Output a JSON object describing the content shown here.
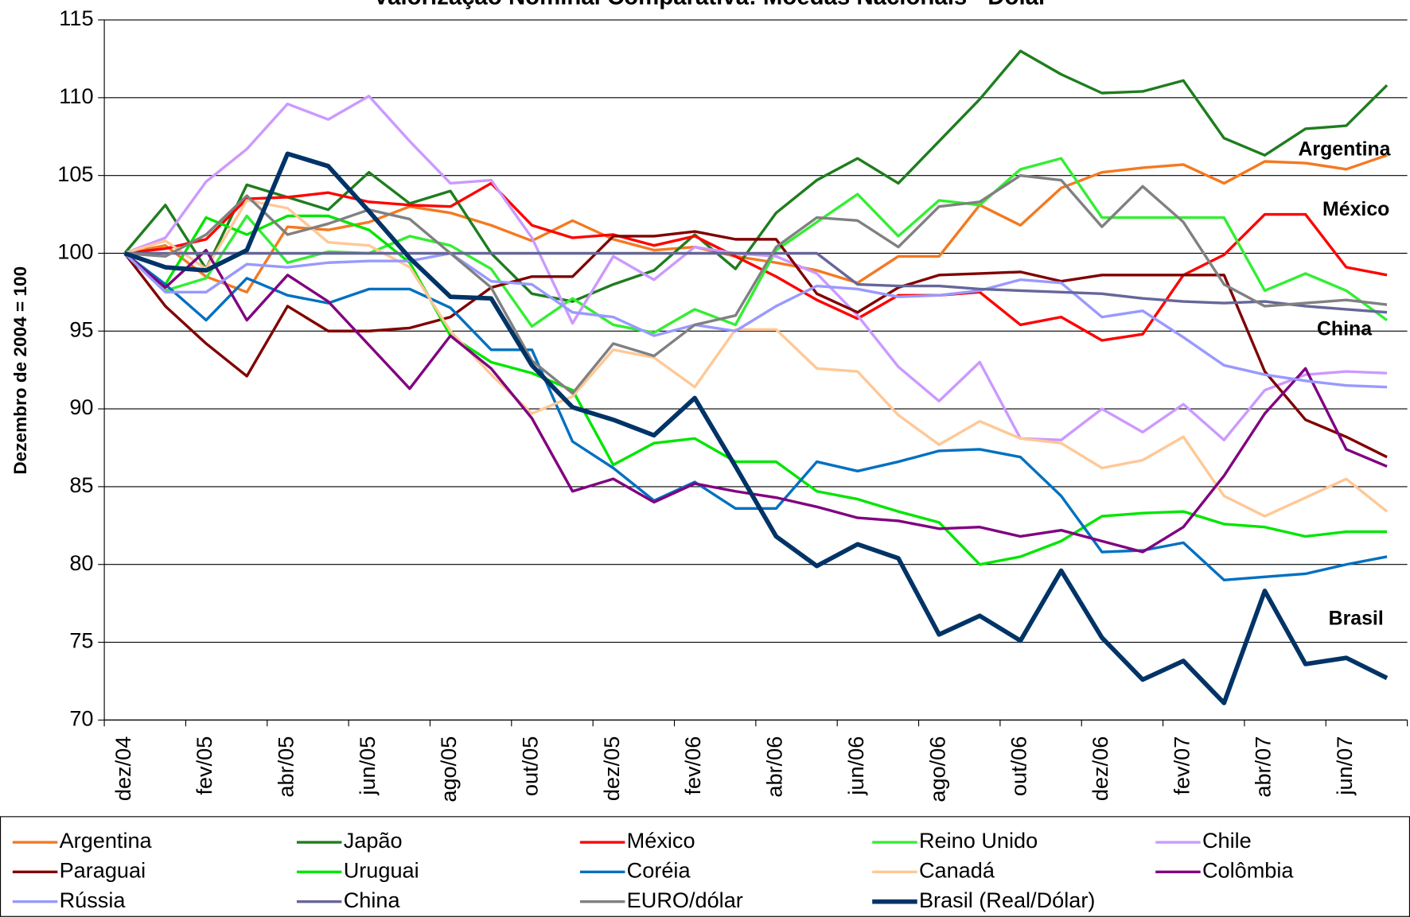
{
  "chart_data": {
    "type": "line",
    "title": "Valorização Nominal Comparativa: Moedas Nacionais - Dólar",
    "y_label": "Dezembro de 2004 = 100",
    "categories": [
      "dez/04",
      null,
      "fev/05",
      null,
      "abr/05",
      null,
      "jun/05",
      null,
      "ago/05",
      null,
      "out/05",
      null,
      "dez/05",
      null,
      "fev/06",
      null,
      "abr/06",
      null,
      "jun/06",
      null,
      "ago/06",
      null,
      "out/06",
      null,
      "dez/06",
      null,
      "fev/07",
      null,
      "abr/07",
      null,
      "jun/07",
      null
    ],
    "ylim": [
      70,
      115
    ],
    "yticks": [
      70,
      75,
      80,
      85,
      90,
      95,
      100,
      105,
      110,
      115
    ],
    "grid": true,
    "annotations": [
      "Argentina",
      "México",
      "China",
      "Brasil"
    ],
    "series": [
      {
        "name": "Argentina",
        "color": "#f47920",
        "width": 3,
        "values": [
          100,
          100.5,
          98.5,
          97.5,
          101.7,
          101.5,
          102.0,
          103.0,
          102.6,
          101.8,
          100.8,
          102.1,
          100.9,
          100.2,
          100.4,
          99.8,
          99.4,
          98.9,
          98.1,
          99.8,
          99.8,
          103.1,
          101.8,
          104.2,
          105.2,
          105.5,
          105.7,
          104.5,
          105.9,
          105.8,
          105.4,
          106.3
        ]
      },
      {
        "name": "Japão",
        "color": "#1e7d1e",
        "width": 3,
        "values": [
          100,
          103.1,
          99.0,
          104.4,
          103.6,
          102.8,
          105.2,
          103.2,
          104.0,
          100.0,
          97.4,
          96.9,
          98.0,
          98.9,
          101.2,
          99.0,
          102.6,
          104.7,
          106.1,
          104.5,
          107.2,
          109.9,
          113.0,
          111.5,
          110.3,
          110.4,
          111.1,
          107.4,
          106.3,
          108.0,
          108.2,
          110.8
        ]
      },
      {
        "name": "México",
        "color": "#ff0000",
        "width": 3,
        "values": [
          100,
          100.3,
          100.9,
          103.5,
          103.6,
          103.9,
          103.3,
          103.1,
          103.0,
          104.5,
          101.8,
          101.0,
          101.2,
          100.5,
          101.1,
          99.8,
          98.5,
          97.0,
          95.8,
          97.3,
          97.3,
          97.5,
          95.4,
          95.9,
          94.4,
          94.8,
          98.6,
          99.9,
          102.5,
          102.5,
          99.1,
          98.6
        ]
      },
      {
        "name": "Reino Unido",
        "color": "#33ee33",
        "width": 3,
        "values": [
          100,
          97.6,
          98.4,
          102.4,
          99.4,
          100.1,
          100.0,
          101.1,
          100.5,
          99.0,
          95.3,
          97.1,
          95.4,
          94.9,
          96.4,
          95.4,
          100.2,
          102.0,
          103.8,
          101.1,
          103.4,
          103.1,
          105.4,
          106.1,
          102.3,
          102.3,
          102.3,
          102.3,
          97.6,
          98.7,
          97.6,
          95.7
        ]
      },
      {
        "name": "Chile",
        "color": "#cc99ff",
        "width": 3,
        "values": [
          100,
          101.0,
          104.6,
          106.7,
          109.6,
          108.6,
          110.1,
          107.2,
          104.5,
          104.7,
          101.0,
          95.5,
          99.8,
          98.3,
          100.4,
          100.0,
          99.8,
          98.7,
          96.0,
          92.7,
          90.5,
          93.0,
          88.1,
          88.0,
          90.0,
          88.5,
          90.3,
          88.0,
          91.2,
          92.2,
          92.4,
          92.3
        ]
      },
      {
        "name": "Paraguai",
        "color": "#800000",
        "width": 3,
        "values": [
          100,
          96.6,
          94.2,
          92.1,
          96.6,
          95.0,
          95.0,
          95.2,
          95.9,
          97.8,
          98.5,
          98.5,
          101.1,
          101.1,
          101.4,
          100.9,
          100.9,
          97.4,
          96.2,
          97.8,
          98.6,
          98.7,
          98.8,
          98.2,
          98.6,
          98.6,
          98.6,
          98.6,
          92.4,
          89.3,
          88.2,
          86.9
        ]
      },
      {
        "name": "Uruguai",
        "color": "#00e600",
        "width": 3,
        "values": [
          100,
          98.0,
          102.3,
          101.2,
          102.4,
          102.4,
          101.5,
          99.4,
          94.7,
          93.0,
          92.3,
          91.2,
          86.4,
          87.8,
          88.1,
          86.6,
          86.6,
          84.7,
          84.2,
          83.4,
          82.7,
          80.0,
          80.5,
          81.5,
          83.1,
          83.3,
          83.4,
          82.6,
          82.4,
          81.8,
          82.1,
          82.1
        ]
      },
      {
        "name": "Coréia",
        "color": "#0070c0",
        "width": 3,
        "values": [
          100,
          98.0,
          95.7,
          98.4,
          97.3,
          96.8,
          97.7,
          97.7,
          96.5,
          93.8,
          93.8,
          87.9,
          86.2,
          84.1,
          85.3,
          83.6,
          83.6,
          86.6,
          86.0,
          86.6,
          87.3,
          87.4,
          86.9,
          84.4,
          80.8,
          80.9,
          81.4,
          79.0,
          79.2,
          79.4,
          80.0,
          80.5
        ]
      },
      {
        "name": "Canadá",
        "color": "#ffc896",
        "width": 3,
        "values": [
          100,
          100.8,
          99.0,
          103.4,
          102.9,
          100.7,
          100.5,
          99.1,
          95.0,
          92.2,
          89.7,
          90.8,
          93.8,
          93.3,
          91.4,
          95.1,
          95.1,
          92.6,
          92.4,
          89.6,
          87.7,
          89.2,
          88.1,
          87.8,
          86.2,
          86.7,
          88.2,
          84.4,
          83.1,
          84.3,
          85.5,
          83.4
        ]
      },
      {
        "name": "Colômbia",
        "color": "#800080",
        "width": 3,
        "values": [
          100,
          97.8,
          100.2,
          95.7,
          98.6,
          96.9,
          94.1,
          91.3,
          94.7,
          92.6,
          89.4,
          84.7,
          85.5,
          84.0,
          85.2,
          84.7,
          84.3,
          83.7,
          83.0,
          82.8,
          82.3,
          82.4,
          81.8,
          82.2,
          81.5,
          80.8,
          82.4,
          85.7,
          89.7,
          92.6,
          87.4,
          86.3
        ]
      },
      {
        "name": "Rússia",
        "color": "#9999ff",
        "width": 3,
        "values": [
          100,
          97.5,
          97.5,
          99.3,
          99.1,
          99.4,
          99.5,
          99.5,
          100.0,
          98.2,
          98.0,
          96.2,
          95.9,
          94.7,
          95.4,
          95.0,
          96.6,
          97.9,
          97.7,
          97.2,
          97.3,
          97.6,
          98.3,
          98.1,
          95.9,
          96.3,
          94.6,
          92.8,
          92.2,
          91.8,
          91.5,
          91.4
        ]
      },
      {
        "name": "China",
        "color": "#666699",
        "width": 3,
        "values": [
          100,
          100,
          100,
          100,
          100,
          100,
          100,
          100,
          100,
          100,
          100,
          100,
          100,
          100,
          100,
          100,
          100,
          100,
          98.0,
          97.9,
          97.9,
          97.7,
          97.6,
          97.5,
          97.4,
          97.1,
          96.9,
          96.8,
          96.9,
          96.6,
          96.4,
          96.2
        ]
      },
      {
        "name": "EURO/dólar",
        "color": "#808080",
        "width": 3,
        "values": [
          100,
          99.8,
          101.2,
          103.7,
          101.2,
          101.9,
          102.8,
          102.2,
          100.0,
          97.8,
          93.1,
          91.0,
          94.2,
          93.4,
          95.4,
          96.0,
          100.4,
          102.3,
          102.1,
          100.4,
          103.0,
          103.3,
          105.0,
          104.7,
          101.7,
          104.3,
          102.0,
          98.0,
          96.6,
          96.8,
          97.0,
          96.7
        ]
      },
      {
        "name": "Brasil (Real/Dólar)",
        "color": "#003366",
        "width": 5,
        "values": [
          100,
          99.1,
          98.9,
          100.2,
          106.4,
          105.6,
          102.7,
          99.7,
          97.2,
          97.1,
          92.8,
          90.1,
          89.3,
          88.3,
          90.7,
          86.3,
          81.8,
          79.9,
          81.3,
          80.4,
          75.5,
          76.7,
          75.1,
          79.6,
          75.3,
          72.6,
          73.8,
          71.1,
          78.3,
          73.6,
          74.0,
          72.7
        ]
      }
    ]
  }
}
